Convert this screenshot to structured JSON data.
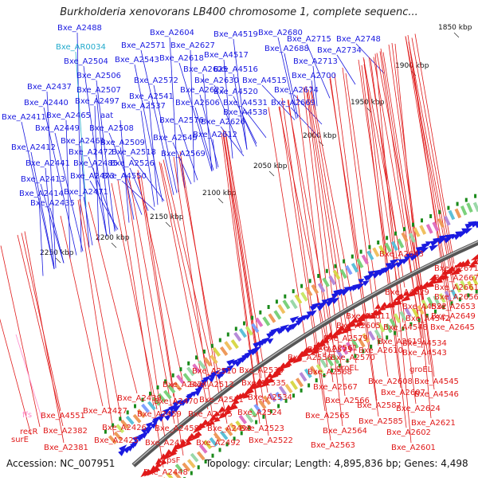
{
  "title": "Burkholderia xenovorans LB400 chromosome 1, complete sequenc...",
  "footer": {
    "accession": "Accession: NC_007951",
    "summary": "Topology: circular; Length: 4,895,836 bp; Genes: 4,498"
  },
  "colors": {
    "forward": "#1a1ae0",
    "reverse": "#e01a1a",
    "rna": "#22aacc",
    "pseudo": "#ff88cc",
    "backbone": "#777777",
    "tick": "#1a8a1a"
  },
  "ticks": [
    "1850 kbp",
    "1900 kbp",
    "1950 kbp",
    "2000 kbp",
    "2050 kbp",
    "2100 kbp",
    "2150 kbp",
    "2200 kbp",
    "2250 kbp"
  ],
  "labels_forward": [
    "Bxe_A2488",
    "Bxe_A2604",
    "Bxe_A4519",
    "Bxe_A2680",
    "Bxe_A2715",
    "Bxe_A2748",
    "Bxe_A2571",
    "Bxe_A2627",
    "Bxe_A4517",
    "Bxe_A2688",
    "Bxe_A2734",
    "Bxe_A2504",
    "Bxe_A2543",
    "Bxe_A2618",
    "Bxe_A2713",
    "Bxe_A2625",
    "Bxe_A4516",
    "Bxe_A2506",
    "Bxe_A2572",
    "Bxe_A2630",
    "Bxe_A4515",
    "Bxe_A2700",
    "Bxe_A2437",
    "Bxe_A2507",
    "Bxe_A2622",
    "Bxe_A4520",
    "Bxe_A2674",
    "Bxe_A2440",
    "Bxe_A2497",
    "Bxe_A2541",
    "Bxe_A2537",
    "Bxe_A2606",
    "Bxe_A4531",
    "Bxe_A2669",
    "Bxe_A2411",
    "Bxe_A2465",
    "aat",
    "Bxe_A4538",
    "Bxe_A2576",
    "Bxe_A2626",
    "Bxe_A2449",
    "Bxe_A2508",
    "Bxe_A2612",
    "Bxe_A2461",
    "Bxe_A2509",
    "Bxe_A2549",
    "Bxe_A2412",
    "Bxe_A2472",
    "Bxe_A2518",
    "Bxe_A2569",
    "Bxe_A2441",
    "Bxe_A2485",
    "Bxe_A2526",
    "Bxe_A2413",
    "Bxe_A2473",
    "Bxe_A4550",
    "Bxe_A2414",
    "Bxe_A2471",
    "Bxe_A2435"
  ],
  "labels_rna": [
    "Bxe_AR0034"
  ],
  "labels_reverse": [
    "Bxe_A2643",
    "Bxe_A2671",
    "Bxe_A2667",
    "Bxe_A2661",
    "Bxe_A2656",
    "Bxe_A4529",
    "Bxe_A4532",
    "Bxe_A2653",
    "Bxe_A2649",
    "Bxe_A4542",
    "Bxe_A2611",
    "Bxe_A4548",
    "Bxe_A2645",
    "Bxe_A2605",
    "Bxe_A4534",
    "Bxe_A2579",
    "Bxe_A2619",
    "Bxe_A4543",
    "Bxe_A2561",
    "Bxe_A2573",
    "Bxe_A2610",
    "Bxe_A2556",
    "Bxe_A2570",
    "groEL",
    "groEL",
    "Bxe_A2536",
    "Bxe_A2568",
    "Bxe_A2608",
    "Bxe_A4545",
    "Bxe_A2510",
    "Bxe_A2567",
    "Bxe_A2607",
    "Bxe_A4546",
    "Bxe_A2474",
    "Bxe_A2512",
    "Bxe_A2535",
    "Bxe_A2566",
    "Bxe_A2587",
    "Bxe_A2624",
    "Bxe_A2439",
    "Bxe_A2470",
    "Bxe_A2511",
    "Bxe_A2534",
    "Bxe_A2565",
    "Bxe_A2585",
    "Bxe_A2621",
    "Bxe_A4551",
    "Bxe_A2427",
    "Bxe_A2459",
    "Bxe_A2495",
    "Bxe_A2524",
    "recR",
    "Bxe_A2426",
    "Bxe_A2458",
    "Bxe_A2493",
    "Bxe_A2523",
    "Bxe_A2564",
    "Bxe_A2602",
    "Bxe_A2382",
    "surE",
    "Bxe_A2425",
    "Bxe_A2457",
    "Bxe_A2492",
    "Bxe_A2522",
    "Bxe_A2563",
    "Bxe_A2601",
    "Bxe_A2381",
    "rpsF",
    "Bxe_A2448"
  ],
  "labels_pseudo": [
    "ffs"
  ]
}
